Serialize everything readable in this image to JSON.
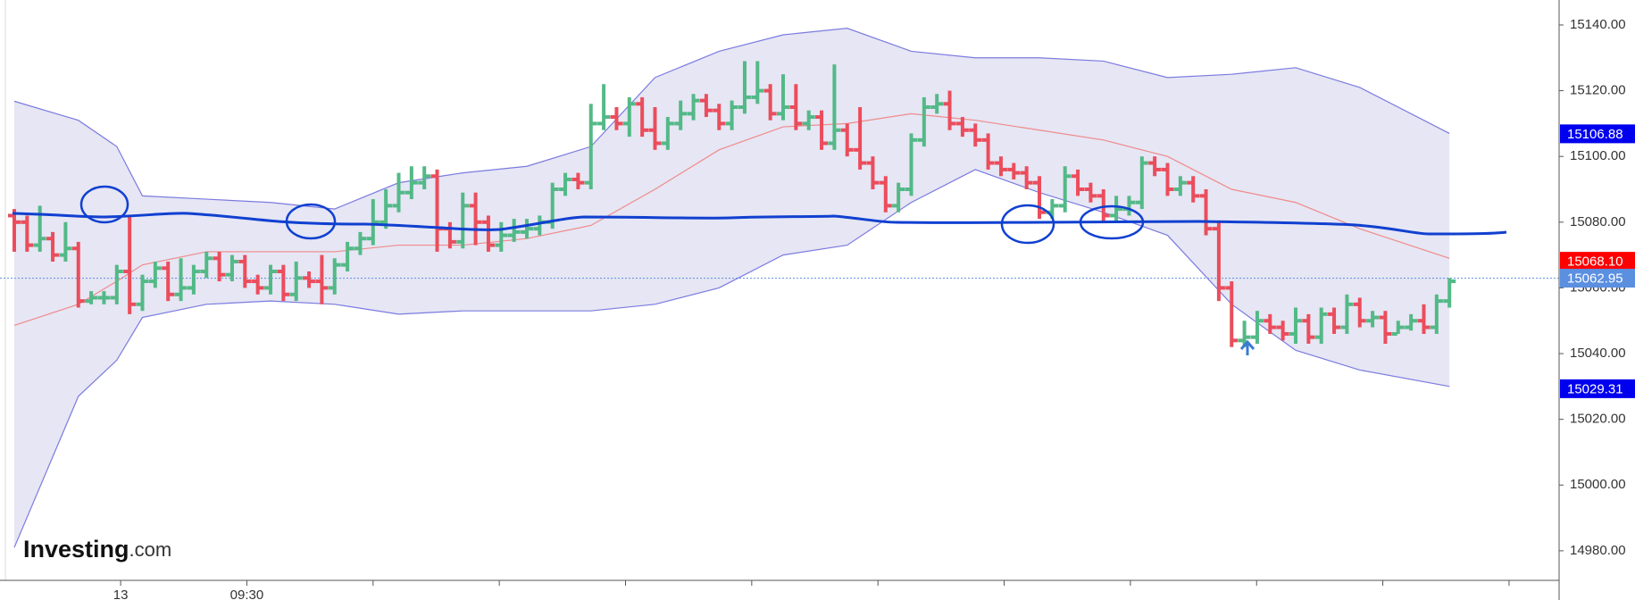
{
  "chart_data": {
    "type": "ohlc",
    "up_color": "#53b987",
    "down_color": "#eb4d5c",
    "ylim": [
      14971,
      15147.6
    ],
    "yticks": [
      {
        "value": 14980,
        "label": "14980.00"
      },
      {
        "value": 15000,
        "label": "15000.00"
      },
      {
        "value": 15020,
        "label": "15020.00"
      },
      {
        "value": 15040,
        "label": "15040.00"
      },
      {
        "value": 15060,
        "label": "15060.00"
      },
      {
        "value": 15080,
        "label": "15080.00"
      },
      {
        "value": 15100,
        "label": "15100.00"
      },
      {
        "value": 15120,
        "label": "15120.00"
      },
      {
        "value": 15140,
        "label": "15140.00"
      }
    ],
    "xticks": [
      8.3,
      18.15,
      28,
      37.85,
      47.7,
      57.55,
      67.4,
      77.25,
      87.1,
      96.95,
      106.8,
      116.65
    ],
    "xtick_labels": [
      "13",
      "09:30",
      null,
      null,
      null,
      null,
      null,
      null,
      null,
      null,
      null,
      null
    ],
    "ohlc": [
      [
        15082,
        15084,
        15071,
        15080
      ],
      [
        15080,
        15082,
        15071,
        15073
      ],
      [
        15073,
        15085,
        15071,
        15075
      ],
      [
        15075,
        15077,
        15068,
        15070
      ],
      [
        15070,
        15080,
        15068,
        15072
      ],
      [
        15072,
        15074,
        15054,
        15056
      ],
      [
        15056,
        15059,
        15055,
        15057
      ],
      [
        15057,
        15059,
        15055,
        15057
      ],
      [
        15057,
        15067,
        15055,
        15065
      ],
      [
        15065,
        15082,
        15052,
        15055
      ],
      [
        15055,
        15064,
        15053,
        15062
      ],
      [
        15062,
        15068,
        15060,
        15066
      ],
      [
        15066,
        15068,
        15056,
        15058
      ],
      [
        15058,
        15069,
        15056,
        15060
      ],
      [
        15060,
        15067,
        15058,
        15065
      ],
      [
        15065,
        15071,
        15063,
        15069
      ],
      [
        15069,
        15071,
        15062,
        15064
      ],
      [
        15064,
        15070,
        15062,
        15068
      ],
      [
        15068,
        15070,
        15060,
        15062
      ],
      [
        15062,
        15064,
        15058,
        15060
      ],
      [
        15060,
        15067,
        15058,
        15065
      ],
      [
        15065,
        15067,
        15056,
        15058
      ],
      [
        15058,
        15068,
        15056,
        15063
      ],
      [
        15063,
        15065,
        15060,
        15062
      ],
      [
        15062,
        15070,
        15055,
        15060
      ],
      [
        15060,
        15069,
        15058,
        15067
      ],
      [
        15067,
        15074,
        15065,
        15072
      ],
      [
        15072,
        15077,
        15070,
        15075
      ],
      [
        15075,
        15087,
        15073,
        15080
      ],
      [
        15080,
        15090,
        15078,
        15085
      ],
      [
        15085,
        15095,
        15083,
        15089
      ],
      [
        15089,
        15097,
        15087,
        15092
      ],
      [
        15092,
        15097,
        15090,
        15094
      ],
      [
        15094,
        15096,
        15071,
        15078
      ],
      [
        15078,
        15080,
        15072,
        15074
      ],
      [
        15074,
        15089,
        15072,
        15085
      ],
      [
        15085,
        15089,
        15073,
        15080
      ],
      [
        15080,
        15082,
        15071,
        15073
      ],
      [
        15073,
        15080,
        15071,
        15076
      ],
      [
        15076,
        15081,
        15074,
        15077
      ],
      [
        15077,
        15081,
        15075,
        15078
      ],
      [
        15078,
        15082,
        15076,
        15080
      ],
      [
        15080,
        15092,
        15078,
        15090
      ],
      [
        15090,
        15095,
        15088,
        15093
      ],
      [
        15093,
        15095,
        15090,
        15092
      ],
      [
        15092,
        15116,
        15090,
        15110
      ],
      [
        15110,
        15122,
        15108,
        15112
      ],
      [
        15112,
        15115,
        15108,
        15110
      ],
      [
        15110,
        15118,
        15106,
        15116
      ],
      [
        15116,
        15118,
        15106,
        15108
      ],
      [
        15108,
        15115,
        15102,
        15104
      ],
      [
        15104,
        15112,
        15102,
        15110
      ],
      [
        15110,
        15117,
        15108,
        15113
      ],
      [
        15113,
        15119,
        15111,
        15117
      ],
      [
        15117,
        15119,
        15112,
        15114
      ],
      [
        15114,
        15116,
        15108,
        15110
      ],
      [
        15110,
        15117,
        15108,
        15115
      ],
      [
        15115,
        15129,
        15113,
        15118
      ],
      [
        15118,
        15129,
        15116,
        15120
      ],
      [
        15120,
        15122,
        15111,
        15113
      ],
      [
        15113,
        15125,
        15111,
        15115
      ],
      [
        15115,
        15122,
        15108,
        15110
      ],
      [
        15110,
        15114,
        15108,
        15112
      ],
      [
        15112,
        15114,
        15102,
        15104
      ],
      [
        15104,
        15128,
        15102,
        15108
      ],
      [
        15108,
        15110,
        15100,
        15102
      ],
      [
        15102,
        15115,
        15096,
        15098
      ],
      [
        15098,
        15100,
        15090,
        15092
      ],
      [
        15092,
        15094,
        15083,
        15085
      ],
      [
        15085,
        15092,
        15083,
        15090
      ],
      [
        15090,
        15107,
        15088,
        15105
      ],
      [
        15105,
        15118,
        15103,
        15115
      ],
      [
        15115,
        15119,
        15113,
        15116
      ],
      [
        15116,
        15120,
        15108,
        15110
      ],
      [
        15110,
        15112,
        15106,
        15108
      ],
      [
        15108,
        15110,
        15103,
        15105
      ],
      [
        15105,
        15107,
        15096,
        15098
      ],
      [
        15098,
        15100,
        15094,
        15096
      ],
      [
        15096,
        15098,
        15093,
        15095
      ],
      [
        15095,
        15097,
        15090,
        15092
      ],
      [
        15092,
        15094,
        15081,
        15083
      ],
      [
        15083,
        15087,
        15081,
        15085
      ],
      [
        15085,
        15097,
        15083,
        15094
      ],
      [
        15094,
        15096,
        15088,
        15090
      ],
      [
        15090,
        15092,
        15086,
        15088
      ],
      [
        15088,
        15090,
        15080,
        15082
      ],
      [
        15082,
        15088,
        15080,
        15084
      ],
      [
        15084,
        15088,
        15082,
        15086
      ],
      [
        15086,
        15100,
        15084,
        15098
      ],
      [
        15098,
        15100,
        15094,
        15096
      ],
      [
        15096,
        15098,
        15088,
        15090
      ],
      [
        15090,
        15094,
        15088,
        15092
      ],
      [
        15092,
        15094,
        15086,
        15088
      ],
      [
        15088,
        15090,
        15076,
        15078
      ],
      [
        15078,
        15080,
        15056,
        15060
      ],
      [
        15060,
        15062,
        15042,
        15044
      ],
      [
        15044,
        15050,
        15042,
        15045
      ],
      [
        15045,
        15053,
        15043,
        15050
      ],
      [
        15050,
        15052,
        15046,
        15048
      ],
      [
        15048,
        15050,
        15044,
        15046
      ],
      [
        15046,
        15054,
        15043,
        15050
      ],
      [
        15050,
        15052,
        15043,
        15045
      ],
      [
        15045,
        15054,
        15043,
        15052
      ],
      [
        15052,
        15054,
        15046,
        15048
      ],
      [
        15048,
        15058,
        15046,
        15055
      ],
      [
        15055,
        15057,
        15048,
        15050
      ],
      [
        15050,
        15053,
        15048,
        15051
      ],
      [
        15051,
        15053,
        15043,
        15046
      ],
      [
        15046,
        15050,
        15046,
        15048
      ],
      [
        15048,
        15052,
        15047,
        15050
      ],
      [
        15050,
        15055,
        15046,
        15048
      ],
      [
        15048,
        15058,
        15046,
        15056
      ],
      [
        15056,
        15063,
        15054,
        15062
      ]
    ],
    "bands": {
      "x": [
        0,
        5,
        8,
        10,
        15,
        20,
        25,
        30,
        35,
        40,
        45,
        50,
        55,
        60,
        65,
        70,
        75,
        80,
        85,
        90,
        95,
        100,
        105,
        112
      ],
      "upper": [
        15116.8,
        15111,
        15103,
        15088,
        15087,
        15086,
        15084,
        15092,
        15095,
        15097,
        15103,
        15124,
        15132,
        15137,
        15139,
        15132,
        15130,
        15130,
        15129,
        15124,
        15125,
        15127,
        15121,
        15107
      ],
      "lower": [
        14981,
        15027,
        15038,
        15051,
        15055,
        15056,
        15055,
        15052,
        15053,
        15053,
        15053,
        15055,
        15060,
        15070,
        15073,
        15086,
        15096,
        15089,
        15083,
        15076,
        15055,
        15041,
        15035,
        15030
      ],
      "middle": [
        15048.6,
        15055,
        15062,
        15067,
        15071,
        15071,
        15071,
        15073,
        15073,
        15075,
        15079,
        15090,
        15102,
        15109,
        15110,
        15113,
        15111,
        15108,
        15105,
        15100,
        15090,
        15086,
        15078,
        15069
      ],
      "band_color": "#7b7be0",
      "fill_color": "#e6e6f4",
      "middle_color": "#f08a8a"
    },
    "price_labels": [
      {
        "value": 15106.88,
        "label": "15106.88",
        "color": "#0000ee"
      },
      {
        "value": 15068.1,
        "label": "15068.10",
        "color": "#ff0000"
      },
      {
        "value": 15062.95,
        "label": "15062.95",
        "color": "#5b8fe0",
        "dotted_line": true
      },
      {
        "value": 15029.31,
        "label": "15029.31",
        "color": "#0000ee"
      }
    ],
    "logo": {
      "brand": "Investing",
      "suffix": ".com"
    }
  }
}
